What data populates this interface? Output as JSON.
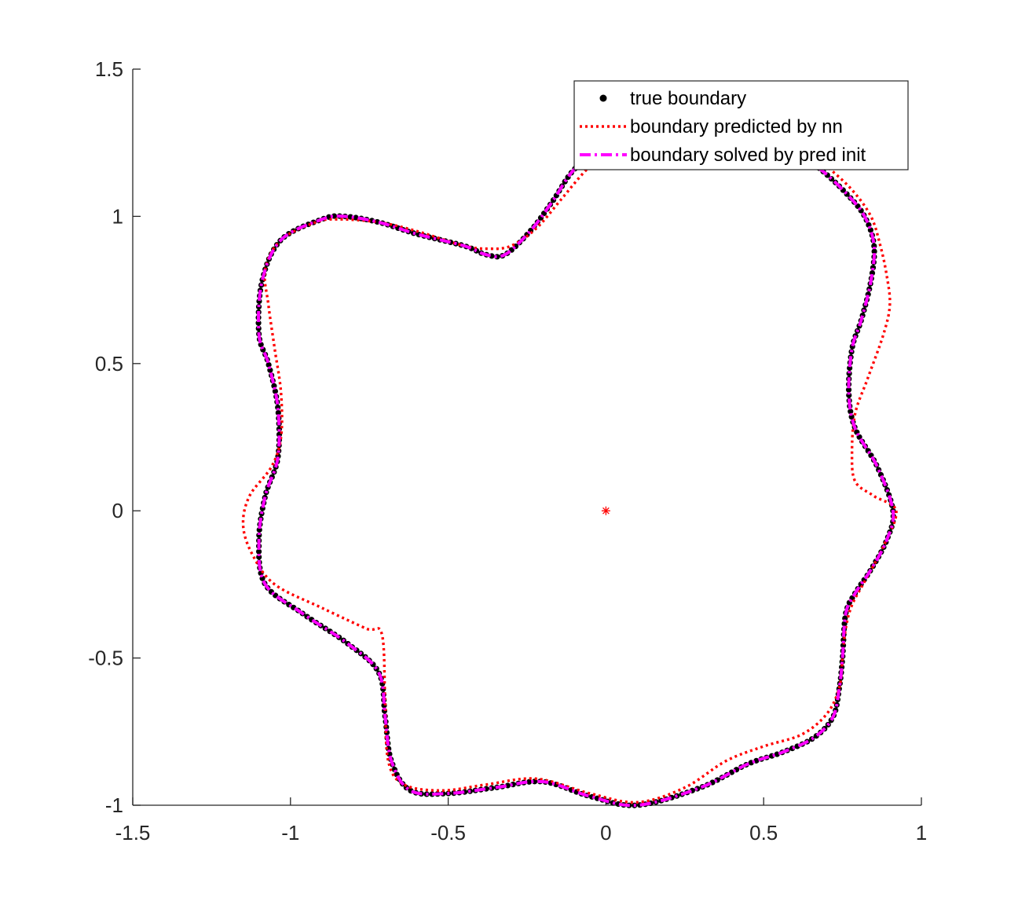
{
  "chart_data": {
    "type": "line",
    "title": "",
    "xlabel": "",
    "ylabel": "",
    "xlim": [
      -1.5,
      1
    ],
    "ylim": [
      -1,
      1.5
    ],
    "xticks": [
      -1.5,
      -1,
      -0.5,
      0,
      0.5,
      1
    ],
    "yticks": [
      -1,
      -0.5,
      0,
      0.5,
      1,
      1.5
    ],
    "xtick_labels": [
      "-1.5",
      "-1",
      "-0.5",
      "0",
      "0.5",
      "1"
    ],
    "ytick_labels": [
      "-1",
      "-0.5",
      "0",
      "0.5",
      "1",
      "1.5"
    ],
    "grid": false,
    "legend_position": "top-right",
    "series": [
      {
        "name": "true boundary",
        "style": "markers",
        "color": "#000000",
        "x": [
          0.91,
          0.89,
          0.84,
          0.79,
          0.76,
          0.75,
          0.74,
          0.72,
          0.66,
          0.56,
          0.45,
          0.3,
          0.1,
          -0.05,
          -0.2,
          -0.35,
          -0.5,
          -0.62,
          -0.68,
          -0.7,
          -0.72,
          -0.82,
          -0.96,
          -1.08,
          -1.1,
          -1.08,
          -1.04,
          -1.04,
          -1.07,
          -1.1,
          -1.09,
          -1.03,
          -0.9,
          -0.83,
          -0.72,
          -0.6,
          -0.45,
          -0.38,
          -0.32,
          -0.24,
          -0.17,
          -0.1,
          0.0,
          0.12,
          0.26,
          0.4,
          0.5,
          0.6,
          0.68,
          0.76,
          0.82,
          0.85,
          0.84,
          0.81,
          0.78,
          0.77,
          0.79,
          0.86,
          0.91
        ],
        "y": [
          0.0,
          -0.1,
          -0.2,
          -0.28,
          -0.35,
          -0.5,
          -0.6,
          -0.7,
          -0.77,
          -0.82,
          -0.86,
          -0.94,
          -1.0,
          -0.97,
          -0.92,
          -0.94,
          -0.96,
          -0.95,
          -0.85,
          -0.7,
          -0.55,
          -0.45,
          -0.35,
          -0.25,
          -0.1,
          0.05,
          0.18,
          0.35,
          0.5,
          0.6,
          0.78,
          0.92,
          0.99,
          1.0,
          0.98,
          0.94,
          0.9,
          0.87,
          0.87,
          0.95,
          1.05,
          1.16,
          1.24,
          1.3,
          1.32,
          1.3,
          1.27,
          1.22,
          1.16,
          1.08,
          1.0,
          0.9,
          0.78,
          0.65,
          0.55,
          0.4,
          0.28,
          0.15,
          0.0
        ]
      },
      {
        "name": "boundary predicted by nn",
        "style": "dotted",
        "color": "#ff0000",
        "x": [
          0.92,
          0.88,
          0.82,
          0.78,
          0.76,
          0.75,
          0.74,
          0.7,
          0.62,
          0.5,
          0.38,
          0.25,
          0.1,
          -0.05,
          -0.22,
          -0.38,
          -0.52,
          -0.64,
          -0.69,
          -0.7,
          -0.71,
          -0.76,
          -0.9,
          -1.05,
          -1.12,
          -1.15,
          -1.13,
          -1.06,
          -1.03,
          -1.03,
          -1.05,
          -1.07,
          -1.08,
          -1.03,
          -0.92,
          -0.85,
          -0.72,
          -0.6,
          -0.45,
          -0.37,
          -0.3,
          -0.22,
          -0.14,
          -0.06,
          0.03,
          0.15,
          0.28,
          0.42,
          0.52,
          0.62,
          0.7,
          0.78,
          0.84,
          0.87,
          0.89,
          0.9,
          0.88,
          0.83,
          0.79,
          0.78,
          0.79,
          0.85,
          0.92
        ],
        "y": [
          0.0,
          -0.12,
          -0.24,
          -0.32,
          -0.4,
          -0.5,
          -0.6,
          -0.69,
          -0.76,
          -0.8,
          -0.85,
          -0.94,
          -0.99,
          -0.96,
          -0.91,
          -0.93,
          -0.95,
          -0.93,
          -0.85,
          -0.65,
          -0.42,
          -0.4,
          -0.33,
          -0.25,
          -0.15,
          -0.05,
          0.05,
          0.15,
          0.25,
          0.4,
          0.55,
          0.7,
          0.82,
          0.92,
          0.98,
          0.99,
          0.98,
          0.95,
          0.9,
          0.89,
          0.9,
          0.96,
          1.06,
          1.16,
          1.24,
          1.3,
          1.32,
          1.31,
          1.28,
          1.24,
          1.17,
          1.09,
          1.0,
          0.9,
          0.8,
          0.7,
          0.6,
          0.45,
          0.33,
          0.2,
          0.1,
          0.05,
          0.0
        ]
      },
      {
        "name": "boundary solved by pred init",
        "style": "dash-dot",
        "color": "#ff00ff",
        "x": [
          0.91,
          0.89,
          0.84,
          0.79,
          0.76,
          0.75,
          0.74,
          0.72,
          0.66,
          0.56,
          0.45,
          0.3,
          0.1,
          -0.05,
          -0.2,
          -0.35,
          -0.5,
          -0.62,
          -0.68,
          -0.7,
          -0.72,
          -0.82,
          -0.96,
          -1.08,
          -1.1,
          -1.08,
          -1.04,
          -1.04,
          -1.07,
          -1.1,
          -1.09,
          -1.03,
          -0.9,
          -0.83,
          -0.72,
          -0.6,
          -0.45,
          -0.38,
          -0.32,
          -0.24,
          -0.17,
          -0.1,
          0.0,
          0.12,
          0.26,
          0.4,
          0.5,
          0.6,
          0.68,
          0.76,
          0.82,
          0.85,
          0.84,
          0.81,
          0.78,
          0.77,
          0.79,
          0.86,
          0.91
        ],
        "y": [
          0.0,
          -0.1,
          -0.2,
          -0.28,
          -0.35,
          -0.5,
          -0.6,
          -0.7,
          -0.77,
          -0.82,
          -0.86,
          -0.94,
          -1.0,
          -0.97,
          -0.92,
          -0.94,
          -0.96,
          -0.95,
          -0.85,
          -0.7,
          -0.55,
          -0.45,
          -0.35,
          -0.25,
          -0.1,
          0.05,
          0.18,
          0.35,
          0.5,
          0.6,
          0.78,
          0.92,
          0.99,
          1.0,
          0.98,
          0.94,
          0.9,
          0.87,
          0.87,
          0.95,
          1.05,
          1.16,
          1.24,
          1.3,
          1.32,
          1.3,
          1.27,
          1.22,
          1.16,
          1.08,
          1.0,
          0.9,
          0.78,
          0.65,
          0.55,
          0.4,
          0.28,
          0.15,
          0.0
        ]
      }
    ],
    "annotations": [
      {
        "type": "marker",
        "marker": "asterisk",
        "x": 0,
        "y": 0,
        "color": "#ff0000"
      }
    ]
  }
}
